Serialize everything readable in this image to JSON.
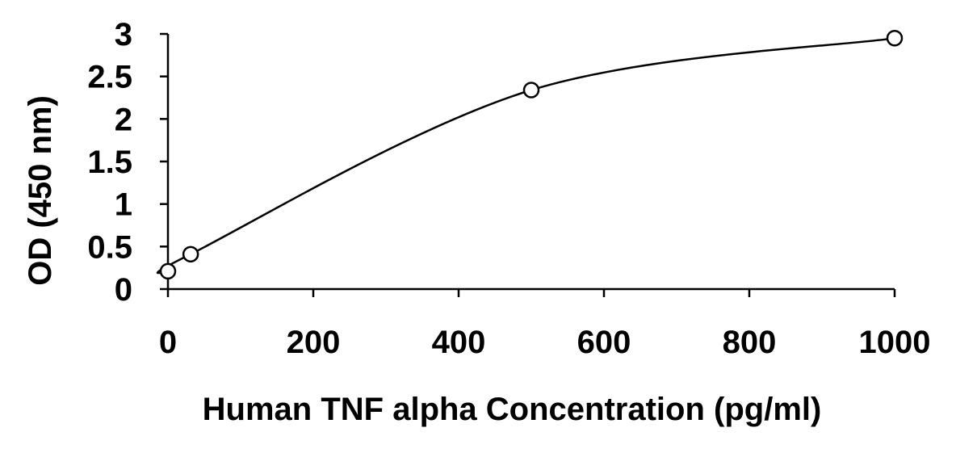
{
  "chart_data": {
    "type": "scatter",
    "title": "",
    "xlabel": "Human TNF alpha Concentration (pg/ml)",
    "ylabel": "OD (450 nm)",
    "xlim": [
      0,
      1000
    ],
    "ylim": [
      0,
      3
    ],
    "xticks": [
      0,
      200,
      400,
      600,
      800,
      1000
    ],
    "xtick_labels": [
      "0",
      "200",
      "400",
      "600",
      "800",
      "1000"
    ],
    "yticks": [
      0,
      0.5,
      1,
      1.5,
      2,
      2.5,
      3
    ],
    "ytick_labels": [
      "0",
      "0.5",
      "1",
      "1.5",
      "2",
      "2.5",
      "3"
    ],
    "grid": false,
    "legend": "none",
    "series": [
      {
        "marker": "open-circle",
        "line": "smooth-fit",
        "color": "#000000",
        "points": [
          {
            "x": 0,
            "y": 0.21
          },
          {
            "x": 31.25,
            "y": 0.41
          },
          {
            "x": 500,
            "y": 2.34
          },
          {
            "x": 1000,
            "y": 2.95
          }
        ]
      }
    ]
  }
}
